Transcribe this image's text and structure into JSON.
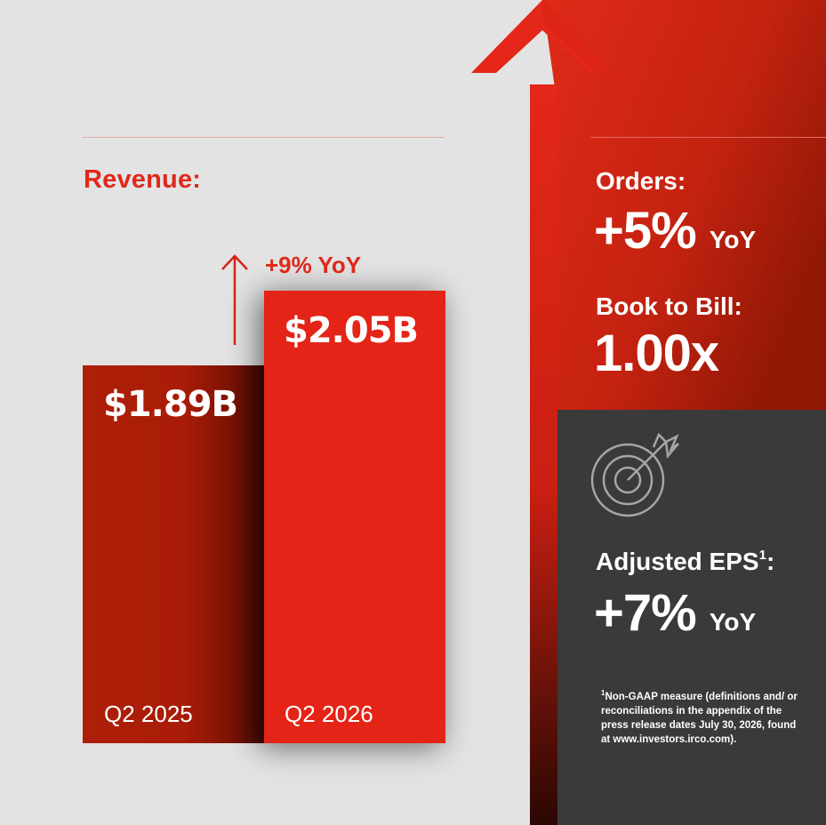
{
  "chart_data": {
    "type": "bar",
    "title": "Revenue:",
    "categories": [
      "Q2 2025",
      "Q2 2026"
    ],
    "values": [
      1.89,
      2.05
    ],
    "value_labels": [
      "$1.89B",
      "$2.05B"
    ],
    "unit": "$B",
    "change_label": "+9% YoY",
    "colors": [
      "#ab1e08",
      "#e42416"
    ]
  },
  "orders": {
    "label": "Orders:",
    "value": "+5%",
    "unit": "YoY"
  },
  "book_to_bill": {
    "label": "Book to Bill:",
    "value": "1.00x"
  },
  "adjusted_eps": {
    "label": "Adjusted EPS",
    "superscript": "1",
    "suffix": ":",
    "value": "+7%",
    "unit": "YoY"
  },
  "footnote": {
    "marker": "1",
    "text": "Non-GAAP measure (definitions and/ or reconciliations in the appendix of the press release dates July 30, 2026, found at www.investors.irco.com)."
  },
  "icons": {
    "target": "target-icon",
    "growth_arrow": "arrow-up-icon"
  },
  "colors": {
    "accent": "#e0281a",
    "dark_red": "#a31a05",
    "panel": "#3a3a3a",
    "background": "#e3e3e3"
  }
}
